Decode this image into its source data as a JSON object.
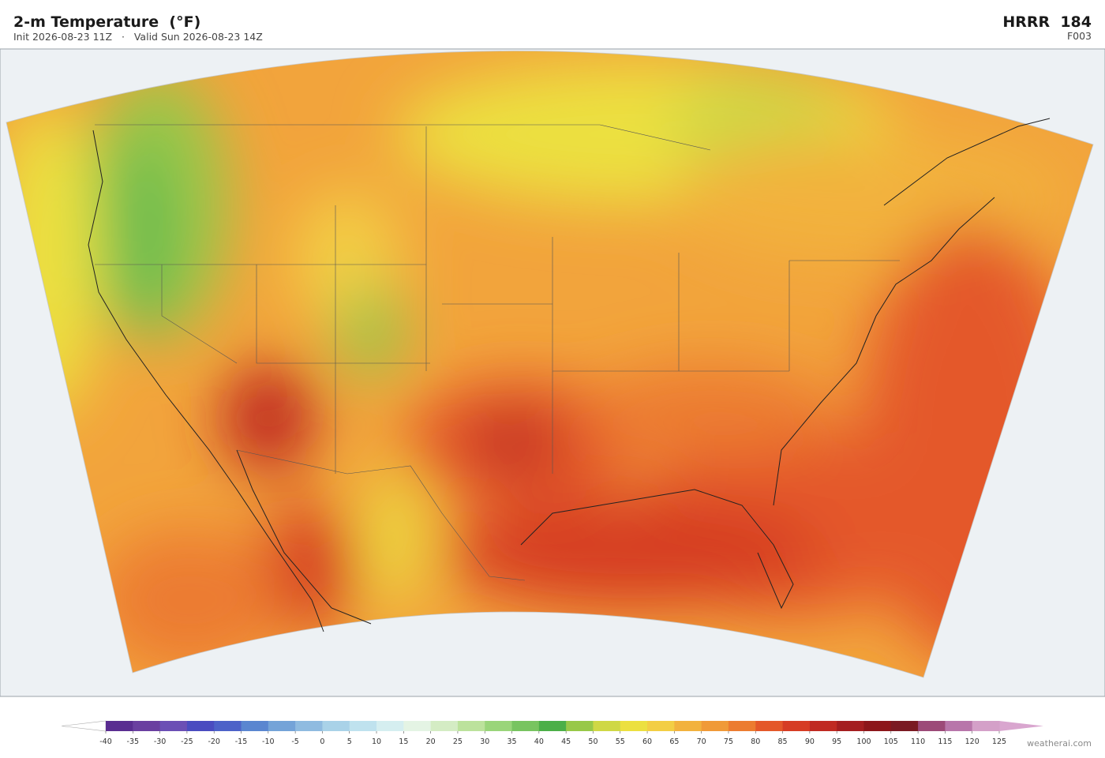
{
  "header": {
    "title": "2-m Temperature  (°F)",
    "subtitle": "Init 2026-08-23 11Z   ·   Valid Sun 2026-08-23 14Z",
    "model": "HRRR  184",
    "forecast_hour": "F003"
  },
  "colorbar": {
    "ticks": [
      -40,
      -35,
      -30,
      -25,
      -20,
      -15,
      -10,
      -5,
      0,
      5,
      10,
      15,
      20,
      25,
      30,
      35,
      40,
      45,
      50,
      55,
      60,
      65,
      70,
      75,
      80,
      85,
      90,
      95,
      100,
      105,
      110,
      115,
      120,
      125
    ],
    "colors": [
      "#5a2d91",
      "#6a3fa0",
      "#6b4fb5",
      "#4a4cc0",
      "#4d62c8",
      "#5a86d0",
      "#74a3d8",
      "#8fbbe0",
      "#a9d2e8",
      "#bfe2ee",
      "#d5eef0",
      "#e4f4e4",
      "#d4ecc4",
      "#bce29c",
      "#9ad57a",
      "#78c460",
      "#4caf48",
      "#98c848",
      "#cfd845",
      "#ece040",
      "#f3ce44",
      "#f2b23e",
      "#f09a38",
      "#ec7c30",
      "#e4582a",
      "#d63c24",
      "#c02a22",
      "#a41e20",
      "#8c161a",
      "#7a1a22",
      "#9c4a78",
      "#b876aa",
      "#d4a0c8"
    ],
    "under_color": "#ffffff",
    "over_color": "#d9a6cf"
  },
  "credit": "weatherai.com"
}
